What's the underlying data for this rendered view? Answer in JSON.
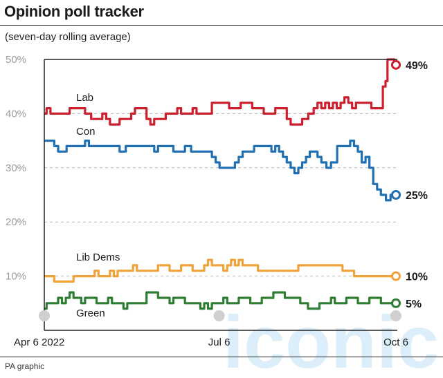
{
  "header": {
    "title": "Opinion poll tracker",
    "subtitle": "(seven-day rolling average)"
  },
  "footer": {
    "credit": "PA graphic"
  },
  "watermark": {
    "text": "iconic"
  },
  "colors": {
    "lab": "#cc1f2d",
    "con": "#1f6fb2",
    "libdem": "#f0a23a",
    "green": "#2d7d32",
    "grid": "#b5b5b5",
    "axis": "#222222"
  },
  "chart_data": {
    "type": "line",
    "x_start": "2022-04-06",
    "x_end": "2022-10-06",
    "x_ticks": [
      {
        "date": "2022-04-06",
        "label": "Apr 6 2022"
      },
      {
        "date": "2022-07-06",
        "label": "Jul 6"
      },
      {
        "date": "2022-10-06",
        "label": "Oct 6"
      }
    ],
    "ylim": [
      0,
      50
    ],
    "y_ticks": [
      {
        "value": 10,
        "label": "10%"
      },
      {
        "value": 20,
        "label": "20%"
      },
      {
        "value": 30,
        "label": "30%"
      },
      {
        "value": 40,
        "label": "40%"
      },
      {
        "value": 50,
        "label": "50%"
      }
    ],
    "grid": true,
    "series": [
      {
        "name": "Lab",
        "key": "lab",
        "end_label": "49%",
        "points": [
          [
            "2022-04-06",
            40
          ],
          [
            "2022-04-08",
            41
          ],
          [
            "2022-04-10",
            40
          ],
          [
            "2022-04-18",
            40
          ],
          [
            "2022-04-20",
            41
          ],
          [
            "2022-04-26",
            41
          ],
          [
            "2022-04-28",
            40
          ],
          [
            "2022-05-02",
            39
          ],
          [
            "2022-05-05",
            39
          ],
          [
            "2022-05-07",
            40
          ],
          [
            "2022-05-09",
            39
          ],
          [
            "2022-05-11",
            38
          ],
          [
            "2022-05-14",
            38
          ],
          [
            "2022-05-16",
            39
          ],
          [
            "2022-05-20",
            39
          ],
          [
            "2022-05-22",
            40
          ],
          [
            "2022-05-24",
            41
          ],
          [
            "2022-05-28",
            41
          ],
          [
            "2022-05-30",
            39
          ],
          [
            "2022-06-01",
            38
          ],
          [
            "2022-06-03",
            39
          ],
          [
            "2022-06-07",
            39
          ],
          [
            "2022-06-09",
            40
          ],
          [
            "2022-06-13",
            40
          ],
          [
            "2022-06-15",
            41
          ],
          [
            "2022-06-17",
            40
          ],
          [
            "2022-06-21",
            40
          ],
          [
            "2022-06-23",
            41
          ],
          [
            "2022-06-25",
            40
          ],
          [
            "2022-07-01",
            40
          ],
          [
            "2022-07-03",
            42
          ],
          [
            "2022-07-10",
            42
          ],
          [
            "2022-07-12",
            41
          ],
          [
            "2022-07-16",
            41
          ],
          [
            "2022-07-18",
            42
          ],
          [
            "2022-07-22",
            42
          ],
          [
            "2022-07-24",
            41
          ],
          [
            "2022-07-28",
            41
          ],
          [
            "2022-07-30",
            40
          ],
          [
            "2022-08-03",
            40
          ],
          [
            "2022-08-05",
            41
          ],
          [
            "2022-08-09",
            41
          ],
          [
            "2022-08-11",
            39
          ],
          [
            "2022-08-13",
            38
          ],
          [
            "2022-08-17",
            38
          ],
          [
            "2022-08-19",
            39
          ],
          [
            "2022-08-23",
            40
          ],
          [
            "2022-08-25",
            41
          ],
          [
            "2022-08-27",
            42
          ],
          [
            "2022-08-29",
            41
          ],
          [
            "2022-08-31",
            42
          ],
          [
            "2022-09-02",
            41
          ],
          [
            "2022-09-04",
            42
          ],
          [
            "2022-09-06",
            41
          ],
          [
            "2022-09-08",
            42
          ],
          [
            "2022-09-10",
            43
          ],
          [
            "2022-09-12",
            42
          ],
          [
            "2022-09-14",
            41
          ],
          [
            "2022-09-16",
            42
          ],
          [
            "2022-09-22",
            42
          ],
          [
            "2022-09-24",
            41
          ],
          [
            "2022-09-28",
            41
          ],
          [
            "2022-09-30",
            45
          ],
          [
            "2022-10-01",
            46
          ],
          [
            "2022-10-02",
            50
          ],
          [
            "2022-10-04",
            50
          ],
          [
            "2022-10-06",
            49
          ]
        ]
      },
      {
        "name": "Con",
        "key": "con",
        "end_label": "25%",
        "points": [
          [
            "2022-04-06",
            35
          ],
          [
            "2022-04-10",
            35
          ],
          [
            "2022-04-12",
            34
          ],
          [
            "2022-04-14",
            33
          ],
          [
            "2022-04-20",
            34
          ],
          [
            "2022-04-26",
            34
          ],
          [
            "2022-04-28",
            35
          ],
          [
            "2022-04-30",
            34
          ],
          [
            "2022-05-14",
            34
          ],
          [
            "2022-05-16",
            33
          ],
          [
            "2022-05-20",
            34
          ],
          [
            "2022-06-01",
            34
          ],
          [
            "2022-06-03",
            33
          ],
          [
            "2022-06-05",
            34
          ],
          [
            "2022-06-11",
            34
          ],
          [
            "2022-06-13",
            33
          ],
          [
            "2022-06-17",
            33
          ],
          [
            "2022-06-19",
            34
          ],
          [
            "2022-06-23",
            33
          ],
          [
            "2022-07-01",
            33
          ],
          [
            "2022-07-03",
            32
          ],
          [
            "2022-07-05",
            31
          ],
          [
            "2022-07-07",
            30
          ],
          [
            "2022-07-13",
            30
          ],
          [
            "2022-07-15",
            31
          ],
          [
            "2022-07-17",
            32
          ],
          [
            "2022-07-19",
            33
          ],
          [
            "2022-07-23",
            33
          ],
          [
            "2022-07-25",
            34
          ],
          [
            "2022-08-01",
            34
          ],
          [
            "2022-08-03",
            33
          ],
          [
            "2022-08-05",
            34
          ],
          [
            "2022-08-07",
            33
          ],
          [
            "2022-08-09",
            32
          ],
          [
            "2022-08-11",
            31
          ],
          [
            "2022-08-13",
            30
          ],
          [
            "2022-08-15",
            29
          ],
          [
            "2022-08-17",
            30
          ],
          [
            "2022-08-19",
            31
          ],
          [
            "2022-08-21",
            32
          ],
          [
            "2022-08-23",
            33
          ],
          [
            "2022-08-25",
            33
          ],
          [
            "2022-08-27",
            32
          ],
          [
            "2022-08-29",
            31
          ],
          [
            "2022-09-01",
            30
          ],
          [
            "2022-09-03",
            31
          ],
          [
            "2022-09-07",
            34
          ],
          [
            "2022-09-11",
            34
          ],
          [
            "2022-09-13",
            35
          ],
          [
            "2022-09-15",
            34
          ],
          [
            "2022-09-17",
            33
          ],
          [
            "2022-09-19",
            31
          ],
          [
            "2022-09-21",
            32
          ],
          [
            "2022-09-23",
            30
          ],
          [
            "2022-09-25",
            27
          ],
          [
            "2022-09-27",
            26
          ],
          [
            "2022-09-29",
            25
          ],
          [
            "2022-10-02",
            24
          ],
          [
            "2022-10-04",
            25
          ],
          [
            "2022-10-06",
            25
          ]
        ]
      },
      {
        "name": "Lib Dems",
        "key": "libdem",
        "end_label": "10%",
        "points": [
          [
            "2022-04-06",
            10
          ],
          [
            "2022-04-10",
            10
          ],
          [
            "2022-04-12",
            9
          ],
          [
            "2022-04-20",
            9
          ],
          [
            "2022-04-22",
            10
          ],
          [
            "2022-05-01",
            10
          ],
          [
            "2022-05-03",
            11
          ],
          [
            "2022-05-05",
            10
          ],
          [
            "2022-05-09",
            10
          ],
          [
            "2022-05-11",
            11
          ],
          [
            "2022-05-13",
            10
          ],
          [
            "2022-05-15",
            11
          ],
          [
            "2022-05-21",
            11
          ],
          [
            "2022-05-23",
            12
          ],
          [
            "2022-05-25",
            11
          ],
          [
            "2022-06-03",
            11
          ],
          [
            "2022-06-05",
            12
          ],
          [
            "2022-06-09",
            12
          ],
          [
            "2022-06-11",
            11
          ],
          [
            "2022-06-15",
            11
          ],
          [
            "2022-06-17",
            12
          ],
          [
            "2022-06-21",
            12
          ],
          [
            "2022-06-23",
            11
          ],
          [
            "2022-06-27",
            11
          ],
          [
            "2022-06-29",
            12
          ],
          [
            "2022-07-01",
            13
          ],
          [
            "2022-07-03",
            12
          ],
          [
            "2022-07-07",
            12
          ],
          [
            "2022-07-09",
            11
          ],
          [
            "2022-07-11",
            12
          ],
          [
            "2022-07-13",
            13
          ],
          [
            "2022-07-15",
            12
          ],
          [
            "2022-07-17",
            13
          ],
          [
            "2022-07-19",
            12
          ],
          [
            "2022-07-25",
            12
          ],
          [
            "2022-07-27",
            11
          ],
          [
            "2022-08-15",
            11
          ],
          [
            "2022-08-17",
            12
          ],
          [
            "2022-09-07",
            12
          ],
          [
            "2022-09-09",
            11
          ],
          [
            "2022-09-13",
            11
          ],
          [
            "2022-09-15",
            10
          ],
          [
            "2022-10-06",
            10
          ]
        ]
      },
      {
        "name": "Green",
        "key": "green",
        "end_label": "5%",
        "points": [
          [
            "2022-04-06",
            4
          ],
          [
            "2022-04-08",
            5
          ],
          [
            "2022-04-12",
            5
          ],
          [
            "2022-04-14",
            6
          ],
          [
            "2022-04-16",
            5
          ],
          [
            "2022-04-18",
            6
          ],
          [
            "2022-04-20",
            7
          ],
          [
            "2022-04-22",
            6
          ],
          [
            "2022-04-24",
            6
          ],
          [
            "2022-04-26",
            5
          ],
          [
            "2022-04-28",
            6
          ],
          [
            "2022-05-02",
            6
          ],
          [
            "2022-05-04",
            5
          ],
          [
            "2022-05-08",
            5
          ],
          [
            "2022-05-10",
            6
          ],
          [
            "2022-05-12",
            5
          ],
          [
            "2022-05-16",
            5
          ],
          [
            "2022-05-18",
            4
          ],
          [
            "2022-05-20",
            5
          ],
          [
            "2022-05-28",
            5
          ],
          [
            "2022-05-30",
            7
          ],
          [
            "2022-06-03",
            7
          ],
          [
            "2022-06-05",
            6
          ],
          [
            "2022-06-09",
            6
          ],
          [
            "2022-06-11",
            5
          ],
          [
            "2022-06-13",
            6
          ],
          [
            "2022-06-17",
            6
          ],
          [
            "2022-06-19",
            5
          ],
          [
            "2022-06-25",
            5
          ],
          [
            "2022-06-27",
            4
          ],
          [
            "2022-06-29",
            5
          ],
          [
            "2022-07-01",
            4
          ],
          [
            "2022-07-03",
            5
          ],
          [
            "2022-07-07",
            5
          ],
          [
            "2022-07-09",
            6
          ],
          [
            "2022-07-11",
            5
          ],
          [
            "2022-07-15",
            5
          ],
          [
            "2022-07-17",
            6
          ],
          [
            "2022-07-21",
            6
          ],
          [
            "2022-07-23",
            5
          ],
          [
            "2022-07-27",
            5
          ],
          [
            "2022-07-29",
            6
          ],
          [
            "2022-08-02",
            6
          ],
          [
            "2022-08-04",
            7
          ],
          [
            "2022-08-08",
            7
          ],
          [
            "2022-08-10",
            6
          ],
          [
            "2022-08-16",
            6
          ],
          [
            "2022-08-18",
            5
          ],
          [
            "2022-08-20",
            5
          ],
          [
            "2022-08-22",
            4
          ],
          [
            "2022-08-26",
            4
          ],
          [
            "2022-08-28",
            5
          ],
          [
            "2022-09-01",
            5
          ],
          [
            "2022-09-03",
            6
          ],
          [
            "2022-09-05",
            5
          ],
          [
            "2022-09-09",
            5
          ],
          [
            "2022-09-11",
            6
          ],
          [
            "2022-09-15",
            6
          ],
          [
            "2022-09-17",
            5
          ],
          [
            "2022-09-21",
            5
          ],
          [
            "2022-09-23",
            6
          ],
          [
            "2022-09-27",
            6
          ],
          [
            "2022-09-29",
            5
          ],
          [
            "2022-10-06",
            5
          ]
        ]
      }
    ]
  }
}
